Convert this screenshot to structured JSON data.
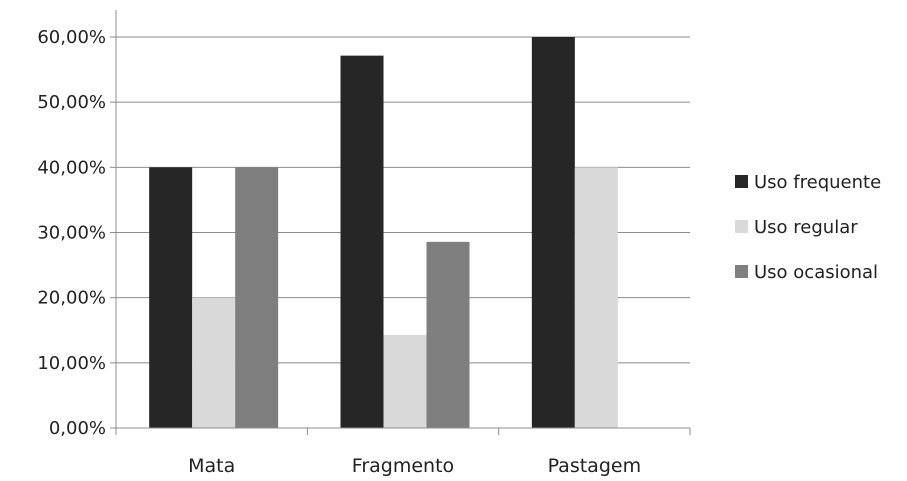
{
  "chart_data": {
    "type": "bar",
    "categories": [
      "Mata",
      "Fragmento",
      "Pastagem"
    ],
    "series": [
      {
        "name": "Uso frequente",
        "color": "#262626",
        "values": [
          40.0,
          57.14,
          60.0
        ]
      },
      {
        "name": "Uso regular",
        "color": "#d9d9d9",
        "values": [
          20.0,
          14.29,
          40.0
        ]
      },
      {
        "name": "Uso ocasional",
        "color": "#7f7f7f",
        "values": [
          40.0,
          28.57,
          0
        ]
      }
    ],
    "yticks": [
      "0,00%",
      "10,00%",
      "20,00%",
      "30,00%",
      "40,00%",
      "50,00%",
      "60,00%"
    ],
    "ylim": [
      0,
      60
    ],
    "grid": true,
    "legend": "right",
    "title": "",
    "xlabel": "",
    "ylabel": ""
  }
}
